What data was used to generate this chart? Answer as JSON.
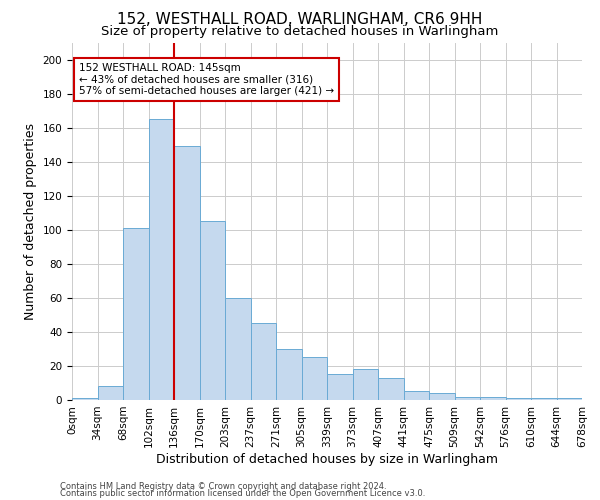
{
  "title": "152, WESTHALL ROAD, WARLINGHAM, CR6 9HH",
  "subtitle": "Size of property relative to detached houses in Warlingham",
  "xlabel": "Distribution of detached houses by size in Warlingham",
  "ylabel": "Number of detached properties",
  "bar_values": [
    1,
    8,
    101,
    165,
    149,
    105,
    60,
    45,
    30,
    25,
    15,
    18,
    13,
    5,
    4,
    2,
    2,
    1,
    1,
    1
  ],
  "bar_labels": [
    "0sqm",
    "34sqm",
    "68sqm",
    "102sqm",
    "136sqm",
    "170sqm",
    "203sqm",
    "237sqm",
    "271sqm",
    "305sqm",
    "339sqm",
    "373sqm",
    "407sqm",
    "441sqm",
    "475sqm",
    "509sqm",
    "542sqm",
    "576sqm",
    "610sqm",
    "644sqm",
    "678sqm"
  ],
  "bar_color": "#c5d9ee",
  "bar_edge_color": "#6aaad4",
  "marker_color": "#cc0000",
  "annotation_text": "152 WESTHALL ROAD: 145sqm\n← 43% of detached houses are smaller (316)\n57% of semi-detached houses are larger (421) →",
  "annotation_box_color": "#ffffff",
  "annotation_box_edge": "#cc0000",
  "ylim": [
    0,
    210
  ],
  "yticks": [
    0,
    20,
    40,
    60,
    80,
    100,
    120,
    140,
    160,
    180,
    200
  ],
  "footer1": "Contains HM Land Registry data © Crown copyright and database right 2024.",
  "footer2": "Contains public sector information licensed under the Open Government Licence v3.0.",
  "background_color": "#ffffff",
  "grid_color": "#cccccc",
  "title_fontsize": 11,
  "subtitle_fontsize": 9.5,
  "axis_label_fontsize": 9,
  "tick_fontsize": 7.5,
  "footer_fontsize": 6
}
